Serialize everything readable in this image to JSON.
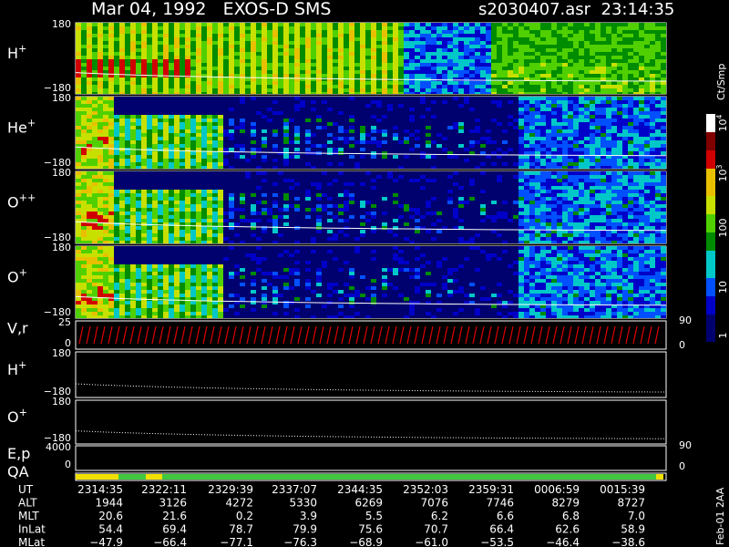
{
  "header": {
    "title": "Mar 04, 1992   EXOS-D SMS",
    "file": "s2030407.asr  23:14:35"
  },
  "panels": [
    {
      "base": "H",
      "sup": "+",
      "ticks": [
        "180",
        "−180"
      ]
    },
    {
      "base": "He",
      "sup": "+",
      "ticks": [
        "180",
        "−180"
      ]
    },
    {
      "base": "O",
      "sup": "++",
      "ticks": [
        "180",
        "−180"
      ]
    },
    {
      "base": "O",
      "sup": "+",
      "ticks": [
        "180",
        "−180"
      ]
    },
    {
      "base": "V,r",
      "ticks": [
        "25",
        "0"
      ],
      "right_ticks": [
        "90",
        "0"
      ]
    },
    {
      "base": "H",
      "sup": "+",
      "ticks": [
        "180",
        "−180"
      ]
    },
    {
      "base": "O",
      "sup": "+",
      "ticks": [
        "180",
        "−180"
      ]
    },
    {
      "base": "E,p",
      "ticks": [
        "4000",
        "0"
      ],
      "right_ticks": [
        "90",
        "0"
      ]
    },
    {
      "base": "QA"
    }
  ],
  "colorbar": {
    "unit": "Ct/Smp",
    "labels": [
      {
        "base": "1"
      },
      {
        "base": "10"
      },
      {
        "base": "100"
      },
      {
        "base": "10",
        "sup": "3"
      },
      {
        "base": "10",
        "sup": "4"
      }
    ]
  },
  "table": {
    "rows": [
      {
        "label": "UT",
        "cells": [
          "2314:35",
          "2322:11",
          "2329:39",
          "2337:07",
          "2344:35",
          "2352:03",
          "2359:31",
          "0006:59",
          "0015:39"
        ]
      },
      {
        "label": "ALT",
        "cells": [
          "1944",
          "3126",
          "4272",
          "5330",
          "6269",
          "7076",
          "7746",
          "8279",
          "8727"
        ]
      },
      {
        "label": "MLT",
        "cells": [
          "20.6",
          "21.6",
          "0.2",
          "3.9",
          "5.5",
          "6.2",
          "6.6",
          "6.8",
          "7.0"
        ]
      },
      {
        "label": "InLat",
        "cells": [
          "54.4",
          "69.4",
          "78.7",
          "79.9",
          "75.6",
          "70.7",
          "66.4",
          "62.6",
          "58.9"
        ]
      },
      {
        "label": "MLat",
        "cells": [
          "−47.9",
          "−66.4",
          "−77.1",
          "−76.3",
          "−68.9",
          "−61.0",
          "−53.5",
          "−46.4",
          "−38.6"
        ]
      }
    ]
  },
  "footer": "Feb-01 2AA"
}
